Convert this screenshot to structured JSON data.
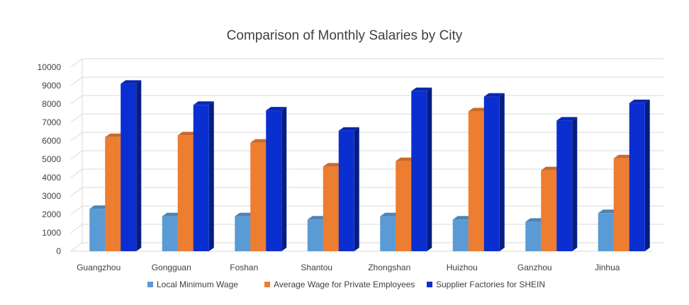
{
  "chart_data": {
    "type": "bar",
    "title": "Comparison of Monthly Salaries by City",
    "xlabel": "",
    "ylabel": "",
    "ylim": [
      0,
      10000
    ],
    "yticks": [
      "0",
      "1000",
      "2000",
      "3000",
      "4000",
      "5000",
      "6000",
      "7000",
      "8000",
      "9000",
      "10000"
    ],
    "grid": true,
    "legend_position": "bottom",
    "categories": [
      "Guangzhou",
      "Gongguan",
      "Foshan",
      "Shantou",
      "Zhongshan",
      "Huizhou",
      "Ganzhou",
      "Jinhua"
    ],
    "series": [
      {
        "name": "Local Minimum Wage",
        "color": "#5B9BD5",
        "values": [
          2300,
          1900,
          1900,
          1720,
          1900,
          1720,
          1600,
          2070
        ]
      },
      {
        "name": "Average Wage for Private Employees",
        "color": "#ED7D31",
        "values": [
          6200,
          6300,
          5900,
          4600,
          4900,
          7600,
          4400,
          5050
        ]
      },
      {
        "name": "Supplier Factories for SHEIN",
        "color": "#0A2ED0",
        "values": [
          9100,
          7950,
          7650,
          6550,
          8700,
          8400,
          7100,
          8050
        ]
      }
    ]
  }
}
